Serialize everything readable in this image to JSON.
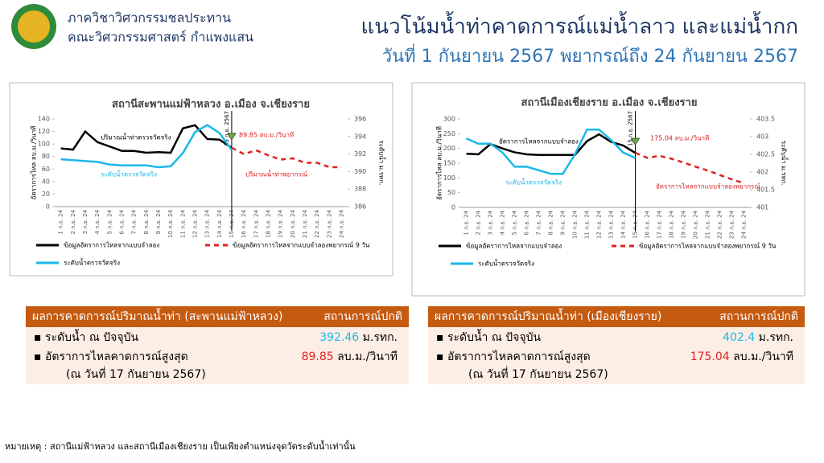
{
  "header": {
    "dept": "ภาควิชาวิศวกรรมชลประทาน",
    "faculty": "คณะวิศวกรรมศาสตร์ กำแพงแสน",
    "title": "แนวโน้มน้ำท่าคาดการณ์แม่น้ำลาว และแม่น้ำกก",
    "subtitle": "วันที่ 1 กันยายน 2567 พยากรณ์ถึง 24 กันยายน 2567"
  },
  "chart_data": [
    {
      "type": "line",
      "title": "สถานีสะพานแม่ฟ้าหลวง อ.เมือง จ.เชียงราย",
      "ylabel": "อัตราการไหล ลบ.ม./วินาที",
      "y2label": "ระดับน้ำ ม.รทก.",
      "categories": [
        "1 ก.ย. 24",
        "2 ก.ย. 24",
        "3 ก.ย. 24",
        "4 ก.ย. 24",
        "5 ก.ย. 24",
        "6 ก.ย. 24",
        "7 ก.ย. 24",
        "8 ก.ย. 24",
        "9 ก.ย. 24",
        "10 ก.ย. 24",
        "11 ก.ย. 24",
        "12 ก.ย. 24",
        "13 ก.ย. 24",
        "14 ก.ย. 24",
        "15 ก.ย. 24",
        "16 ก.ย. 24",
        "17 ก.ย. 24",
        "18 ก.ย. 24",
        "19 ก.ย. 24",
        "20 ก.ย. 24",
        "21 ก.ย. 24",
        "22 ก.ย. 24",
        "23 ก.ย. 24",
        "24 ก.ย. 24"
      ],
      "series": [
        {
          "name": "ข้อมูลอัตราการไหลจากแบบจำลอง",
          "color": "#000000",
          "values": [
            93,
            91,
            120,
            103,
            96,
            89,
            89,
            86,
            87,
            86,
            125,
            130,
            108,
            107,
            94,
            null,
            null,
            null,
            null,
            null,
            null,
            null,
            null,
            null
          ]
        },
        {
          "name": "ข้อมูลอัตราการไหลจากแบบจำลองพยากรณ์ 9 วัน",
          "color": "#e02020",
          "dashed": true,
          "values": [
            null,
            null,
            null,
            null,
            null,
            null,
            null,
            null,
            null,
            null,
            null,
            null,
            null,
            null,
            94,
            84,
            89.85,
            82,
            75,
            77,
            70,
            70,
            63,
            63
          ]
        },
        {
          "name": "ระดับน้ำตรวจวัดจริง",
          "color": "#1ab8e8",
          "axis": "y2",
          "values": [
            391.4,
            391.3,
            391.2,
            391.1,
            390.8,
            390.7,
            390.7,
            390.7,
            390.5,
            390.6,
            392.1,
            394.5,
            395.3,
            394.4,
            392.46,
            null,
            null,
            null,
            null,
            null,
            null,
            null,
            null,
            null
          ]
        }
      ],
      "ylim": [
        0,
        140
      ],
      "yticks": [
        0,
        20,
        40,
        60,
        80,
        100,
        120,
        140
      ],
      "y2lim": [
        386,
        396
      ],
      "y2ticks": [
        386,
        388,
        390,
        392,
        394,
        396
      ],
      "grid": false,
      "annotations": [
        "ปริมาณน้ำท่าตรวจวัดจริง",
        "ระดับน้ำตรวจวัดจริง",
        "ปริมาณน้ำท่าพยากรณ์",
        "89.85 ลบ.ม./วินาที"
      ],
      "vline_label": "15 ก.ย. 2567"
    },
    {
      "type": "line",
      "title": "สถานีเมืองเชียงราย อ.เมือง จ.เชียงราย",
      "ylabel": "อัตราการไหล ลบ.ม./วินาที",
      "y2label": "ระดับน้ำ ม.รทก.",
      "categories": [
        "1 ก.ย. 24",
        "2 ก.ย. 24",
        "3 ก.ย. 24",
        "4 ก.ย. 24",
        "5 ก.ย. 24",
        "6 ก.ย. 24",
        "7 ก.ย. 24",
        "8 ก.ย. 24",
        "9 ก.ย. 24",
        "10 ก.ย. 24",
        "11 ก.ย. 24",
        "12 ก.ย. 24",
        "13 ก.ย. 24",
        "14 ก.ย. 24",
        "15 ก.ย. 24",
        "16 ก.ย. 24",
        "17 ก.ย. 24",
        "18 ก.ย. 24",
        "19 ก.ย. 24",
        "20 ก.ย. 24",
        "21 ก.ย. 24",
        "22 ก.ย. 24",
        "23 ก.ย. 24",
        "24 ก.ย. 24"
      ],
      "series": [
        {
          "name": "ข้อมูลอัตราการไหลจากแบบจำลอง",
          "color": "#000000",
          "values": [
            182,
            180,
            215,
            200,
            187,
            180,
            178,
            178,
            178,
            178,
            225,
            248,
            222,
            210,
            185,
            null,
            null,
            null,
            null,
            null,
            null,
            null,
            null,
            null
          ]
        },
        {
          "name": "ข้อมูลอัตราการไหลจากแบบจำลองพยากรณ์ 9 วัน",
          "color": "#e02020",
          "dashed": true,
          "values": [
            null,
            null,
            null,
            null,
            null,
            null,
            null,
            null,
            null,
            null,
            null,
            null,
            null,
            null,
            185,
            168,
            175.04,
            165,
            152,
            138,
            125,
            110,
            95,
            82
          ]
        },
        {
          "name": "ระดับน้ำตรวจวัดจริง",
          "color": "#1ab8e8",
          "axis": "y2",
          "values": [
            402.95,
            402.8,
            402.8,
            402.55,
            402.15,
            402.15,
            402.05,
            401.95,
            401.95,
            402.5,
            403.2,
            403.2,
            402.9,
            402.55,
            402.4,
            null,
            null,
            null,
            null,
            null,
            null,
            null,
            null,
            null
          ]
        }
      ],
      "ylim": [
        0,
        300
      ],
      "yticks": [
        0,
        50,
        100,
        150,
        200,
        250,
        300
      ],
      "y2lim": [
        401,
        403.5
      ],
      "y2ticks": [
        401,
        401.5,
        402,
        402.5,
        403,
        403.5
      ],
      "grid": false,
      "annotations": [
        "อัตราการไหลจากแบบจำลอง",
        "ระดับน้ำตรวจวัดจริง",
        "อัตราการไหลจากแบบจำลองพยากรณ์",
        "175.04 ลบ.ม./วินาที"
      ],
      "vline_label": "15 ก.ย. 2567"
    }
  ],
  "boxes": [
    {
      "title": "ผลการคาดการณ์ปริมาณน้ำท่า (สะพานแม่ฟ้าหลวง)",
      "status": "สถานการณ์ปกติ",
      "rows": [
        {
          "label": "ระดับน้ำ ณ ปัจจุบัน",
          "value": 392.46,
          "unit": "ม.รทก."
        },
        {
          "label": "อัตราการไหลคาดการณ์สูงสุด",
          "value": 89.85,
          "unit": "ลบ.ม./วินาที"
        }
      ],
      "date": "(ณ วันที่ 17 กันยายน 2567)"
    },
    {
      "title": "ผลการคาดการณ์ปริมาณน้ำท่า (เมืองเชียงราย)",
      "status": "สถานการณ์ปกติ",
      "rows": [
        {
          "label": "ระดับน้ำ ณ ปัจจุบัน",
          "value": 402.4,
          "unit": "ม.รทก."
        },
        {
          "label": "อัตราการไหลคาดการณ์สูงสุด",
          "value": 175.04,
          "unit": "ลบ.ม./วินาที"
        }
      ],
      "date": "(ณ วันที่ 17 กันยายน 2567)"
    }
  ],
  "note": "หมายเหตุ : สถานีแม่ฟ้าหลวง และสถานีเมืองเชียงราย เป็นเพียงตำแหน่งจุดวัดระดับน้ำเท่านั้น"
}
